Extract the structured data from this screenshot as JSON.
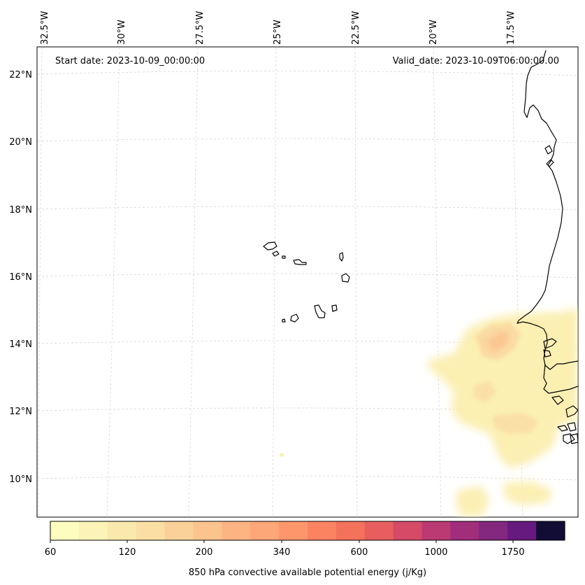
{
  "header": {
    "start_date": "Start date: 2023-10-09_00:00:00",
    "valid_date": "Valid_date: 2023-10-09T06:00:00.00"
  },
  "map": {
    "lon_labels": [
      "32.5°W",
      "30°W",
      "27.5°W",
      "25°W",
      "22.5°W",
      "20°W",
      "17.5°W"
    ],
    "lat_labels": [
      "22°N",
      "20°N",
      "18°N",
      "16°N",
      "14°N",
      "12°N",
      "10°N"
    ],
    "gridlines": true
  },
  "colorbar": {
    "label": "850 hPa convective available potential energy (j/Kg)",
    "tick_labels": [
      "60",
      "120",
      "200",
      "340",
      "600",
      "1000",
      "1750"
    ],
    "colors": [
      "#fcfdbf",
      "#fbf3b7",
      "#fae9ad",
      "#fadea3",
      "#fad199",
      "#fbc38e",
      "#fcb582",
      "#fda677",
      "#fe966c",
      "#fb8361",
      "#f4715b",
      "#e85e5e",
      "#d44a67",
      "#bc3a73",
      "#a02e7b",
      "#83277f",
      "#66197e",
      "#120d35"
    ]
  }
}
